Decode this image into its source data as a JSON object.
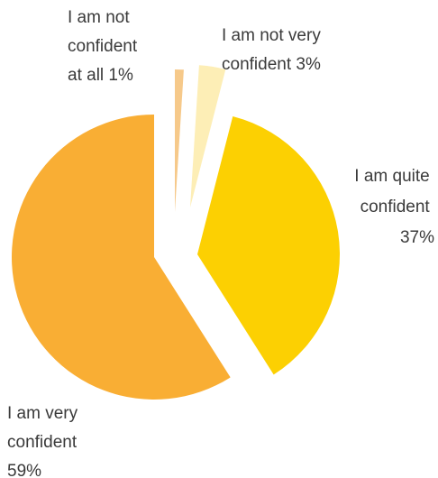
{
  "chart_data": {
    "type": "pie",
    "title": "",
    "slices": [
      {
        "label_lines": [
          "I am not",
          "confident",
          "at all 1%"
        ],
        "label": "I am not confident at all",
        "value": 1,
        "color": "#f6c98a"
      },
      {
        "label_lines": [
          "I am not very",
          "confident 3%"
        ],
        "label": "I am not very confident",
        "value": 3,
        "color": "#fdeeb6"
      },
      {
        "label_lines": [
          "I am quite",
          "confident",
          "37%"
        ],
        "label": "I am quite confident",
        "value": 37,
        "color": "#fcd002"
      },
      {
        "label_lines": [
          "I am very",
          "confident",
          "59%"
        ],
        "label": "I am very confident",
        "value": 59,
        "color": "#f9ae34"
      }
    ],
    "legend": "none",
    "exploded": true
  }
}
